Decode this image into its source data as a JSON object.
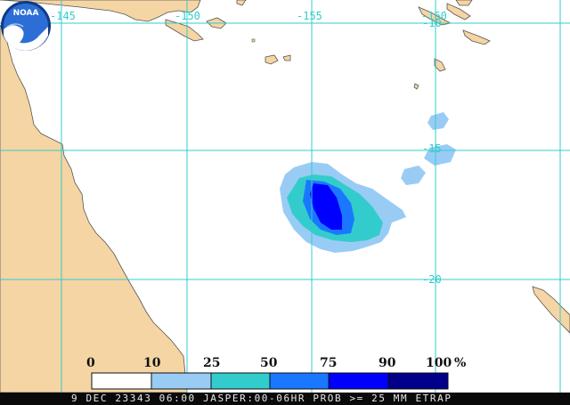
{
  "map": {
    "longitude_labels": [
      "-145",
      "-150",
      "-155",
      "-160"
    ],
    "latitude_labels": [
      "-10",
      "-15",
      "-20"
    ]
  },
  "legend": {
    "ticks": [
      "0",
      "10",
      "25",
      "50",
      "75",
      "90",
      "100"
    ],
    "unit": "%",
    "bins": [
      {
        "range": "0-10",
        "color": "#ffffff"
      },
      {
        "range": "10-25",
        "color": "#99ccf5"
      },
      {
        "range": "25-50",
        "color": "#33cccc"
      },
      {
        "range": "50-75",
        "color": "#1a77ff"
      },
      {
        "range": "75-90",
        "color": "#0000ff"
      },
      {
        "range": "90-100",
        "color": "#00008b"
      }
    ]
  },
  "logo": {
    "text": "NOAA"
  },
  "status": {
    "text": "9 DEC 23343 06:00 JASPER:00-06HR PROB >= 25 MM ETRAP"
  },
  "colors": {
    "land": "#f5d5a3",
    "grid": "#33cccc",
    "coast": "#555555"
  }
}
